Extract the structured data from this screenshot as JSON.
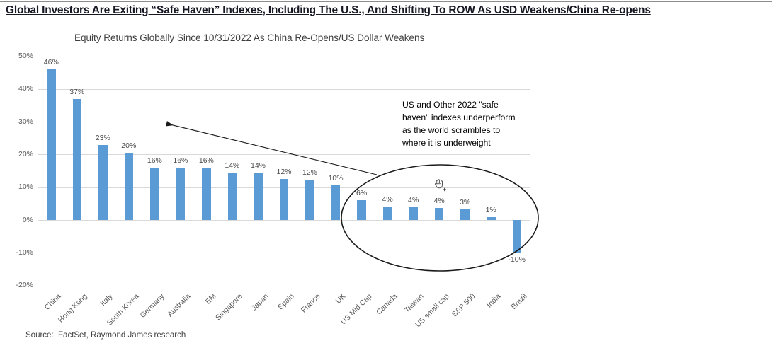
{
  "page": {
    "headline": "Global Investors Are Exiting “Safe Haven” Indexes, Including The U.S., And Shifting To ROW As USD Weakens/China Re-opens",
    "source": "Source:  FactSet, Raymond James research"
  },
  "chart_data": {
    "type": "bar",
    "title": "Equity Returns Globally Since 10/31/2022 As China Re-Opens/US Dollar Weakens",
    "categories": [
      "China",
      "Hong Kong",
      "Italy",
      "South Korea",
      "Germany",
      "Australia",
      "EM",
      "Singapore",
      "Japan",
      "Spain",
      "France",
      "UK",
      "US Mid Cap",
      "Canada",
      "Taiwan",
      "US small cap",
      "S&P 500",
      "India",
      "Brazil"
    ],
    "values": [
      46,
      37,
      23,
      20.5,
      16,
      16,
      16,
      14.5,
      14.5,
      12.5,
      12.3,
      10.5,
      6,
      4.2,
      4,
      3.7,
      3.2,
      0.9,
      -10
    ],
    "data_labels": [
      "46%",
      "37%",
      "23%",
      "20%",
      "16%",
      "16%",
      "16%",
      "14%",
      "14%",
      "12%",
      "12%",
      "10%",
      "6%",
      "4%",
      "4%",
      "4%",
      "3%",
      "1%",
      "-10%"
    ],
    "ylim": [
      -20,
      50
    ],
    "yticks": [
      50,
      40,
      30,
      20,
      10,
      0,
      -10,
      -20
    ],
    "ytick_labels": [
      "50%",
      "40%",
      "30%",
      "20%",
      "10%",
      "0%",
      "-10%",
      "-20%"
    ],
    "grid": true,
    "legend": "none",
    "xlabel": "",
    "ylabel": "",
    "annotation": "US and Other 2022 \"safe haven\" indexes underperform as the world scrambles to where it is underweight",
    "colors": {
      "bar": "#5B9BD5",
      "grid_line": "#D9D9D9",
      "axis_line": "#BFBFBF",
      "tick_text": "#595959",
      "data_label_text": "#4a4a4a"
    }
  },
  "icons": {
    "pan_hand_cursor": "pan-hand-cursor"
  }
}
